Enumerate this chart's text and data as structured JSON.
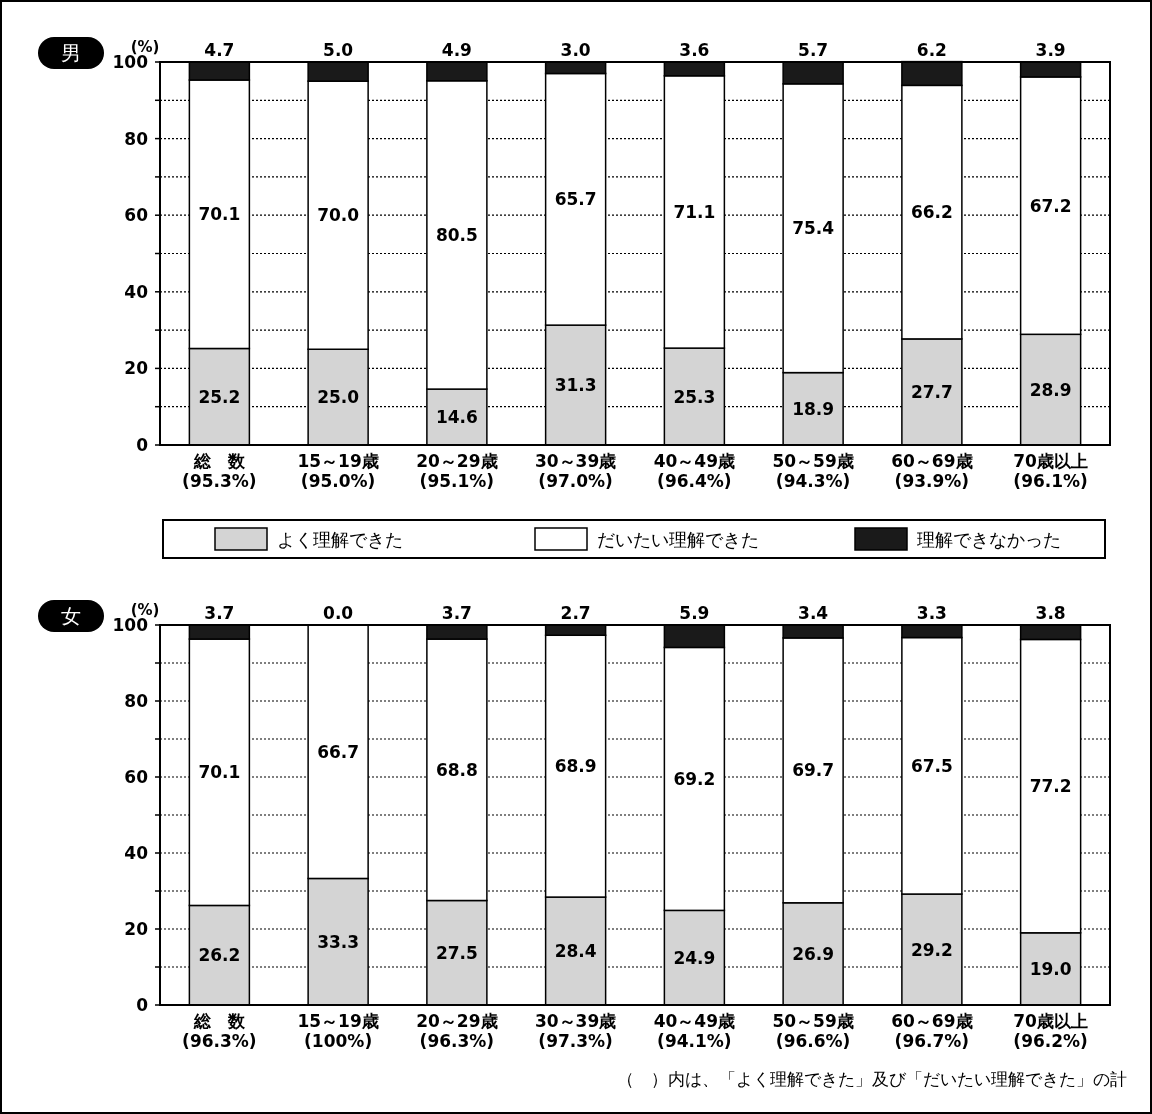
{
  "chart_data": [
    {
      "type": "bar",
      "stacked": true,
      "title": "男",
      "ylabel": "(%)",
      "categories": [
        "総　数\n(95.3%)",
        "15～19歳\n(95.0%)",
        "20～29歳\n(95.1%)",
        "30～39歳\n(97.0%)",
        "40～49歳\n(96.4%)",
        "50～59歳\n(94.3%)",
        "60～69歳\n(93.9%)",
        "70歳以上\n(96.1%)"
      ],
      "series": [
        {
          "name": "よく理解できた",
          "color": "#d4d4d4",
          "values": [
            25.2,
            25.0,
            14.6,
            31.3,
            25.3,
            18.9,
            27.7,
            28.9
          ],
          "value_labels": [
            "25.2",
            "25.0",
            "14.6",
            "31.3",
            "25.3",
            "18.9",
            "27.7",
            "28.9"
          ]
        },
        {
          "name": "だいたい理解できた",
          "color": "#ffffff",
          "values": [
            70.1,
            70.0,
            80.5,
            65.7,
            71.1,
            75.4,
            66.2,
            67.2
          ],
          "value_labels": [
            "70.1",
            "70.0",
            "80.5",
            "65.7",
            "71.1",
            "75.4",
            "66.2",
            "67.2"
          ]
        },
        {
          "name": "理解できなかった",
          "color": "#1a1a1a",
          "values": [
            4.7,
            5.0,
            4.9,
            3.0,
            3.6,
            5.7,
            6.2,
            3.9
          ],
          "value_labels": [
            "4.7",
            "5.0",
            "4.9",
            "3.0",
            "3.6",
            "5.7",
            "6.2",
            "3.9"
          ]
        }
      ],
      "ylim": [
        0,
        100
      ],
      "yticks": [
        0,
        {
          "value": 10,
          "label": null
        },
        20,
        {
          "value": 30,
          "label": null
        },
        40,
        {
          "value": 50,
          "label": null
        },
        60,
        {
          "value": 70,
          "label": null
        },
        80,
        {
          "value": 90,
          "label": null
        },
        100
      ],
      "grid": "y",
      "line_style": "dotted",
      "legend": "bottom"
    },
    {
      "type": "bar",
      "stacked": true,
      "title": "女",
      "ylabel": "(%)",
      "categories": [
        "総　数\n(96.3%)",
        "15～19歳\n(100%)",
        "20～29歳\n(96.3%)",
        "30～39歳\n(97.3%)",
        "40～49歳\n(94.1%)",
        "50～59歳\n(96.6%)",
        "60～69歳\n(96.7%)",
        "70歳以上\n(96.2%)"
      ],
      "series": [
        {
          "color": "#d4d4d4",
          "values": [
            26.2,
            33.3,
            27.5,
            28.4,
            24.9,
            26.9,
            29.2,
            19.0
          ],
          "value_labels": [
            "26.2",
            "33.3",
            "27.5",
            "28.4",
            "24.9",
            "26.9",
            "29.2",
            "19.0"
          ]
        },
        {
          "color": "#ffffff",
          "values": [
            70.1,
            66.7,
            68.8,
            68.9,
            69.2,
            69.7,
            67.5,
            77.2
          ],
          "value_labels": [
            "70.1",
            "66.7",
            "68.8",
            "68.9",
            "69.2",
            "69.7",
            "67.5",
            "77.2"
          ]
        },
        {
          "color": "#1a1a1a",
          "values": [
            3.7,
            0.0,
            3.7,
            2.7,
            5.9,
            3.4,
            3.3,
            3.8
          ],
          "value_labels": [
            "3.7",
            "0.0",
            "3.7",
            "2.7",
            "5.9",
            "3.4",
            "3.3",
            "3.8"
          ]
        }
      ],
      "ylim": [
        0,
        100
      ],
      "yticks": [
        0,
        {
          "value": 10,
          "label": null
        },
        20,
        {
          "value": 30,
          "label": null
        },
        40,
        {
          "value": 50,
          "label": null
        },
        60,
        {
          "value": 70,
          "label": null
        },
        80,
        {
          "value": 90,
          "label": null
        },
        100
      ],
      "grid": "y",
      "line_style": "dotted",
      "legend": false,
      "annotations": [
        "（　）内は、「よく理解できた」及び「だいたい理解できた」の計"
      ]
    }
  ]
}
